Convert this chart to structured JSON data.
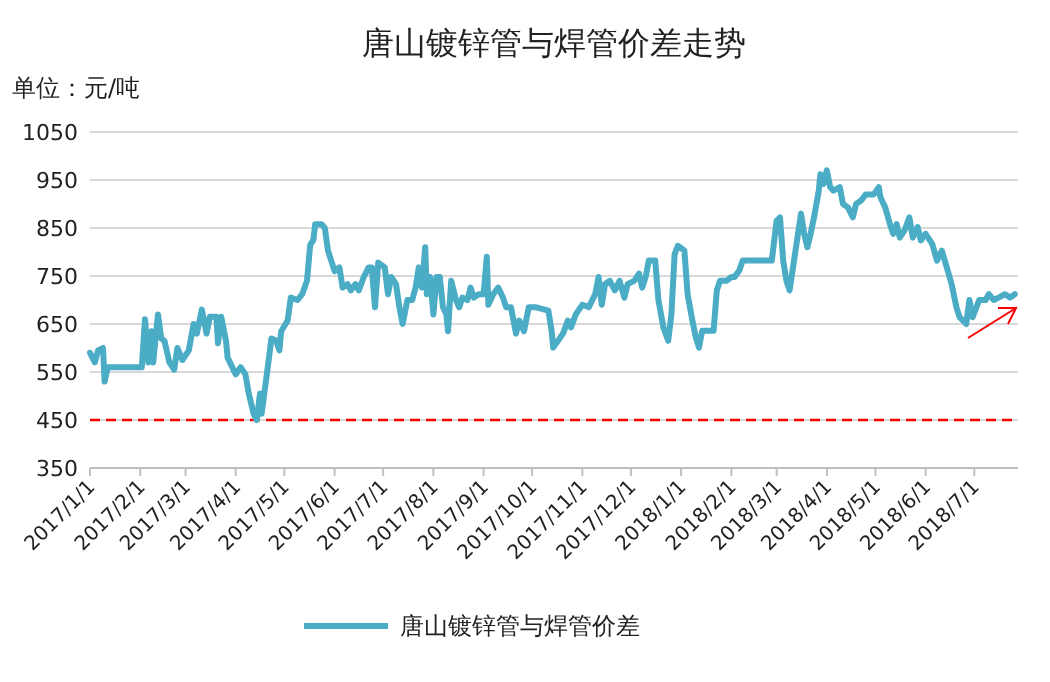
{
  "chart_data": {
    "type": "line",
    "title": "唐山镀锌管与焊管价差走势",
    "ylabel": "单位：元/吨",
    "ylim": [
      350,
      1050
    ],
    "yticks": [
      350,
      450,
      550,
      650,
      750,
      850,
      950,
      1050
    ],
    "xlim": [
      "2017-01-01",
      "2018-07-28"
    ],
    "xticks": [
      {
        "value": "2017-01-01",
        "label": "2017/1/1"
      },
      {
        "value": "2017-02-01",
        "label": "2017/2/1"
      },
      {
        "value": "2017-03-01",
        "label": "2017/3/1"
      },
      {
        "value": "2017-04-01",
        "label": "2017/4/1"
      },
      {
        "value": "2017-05-01",
        "label": "2017/5/1"
      },
      {
        "value": "2017-06-01",
        "label": "2017/6/1"
      },
      {
        "value": "2017-07-01",
        "label": "2017/7/1"
      },
      {
        "value": "2017-08-01",
        "label": "2017/8/1"
      },
      {
        "value": "2017-09-01",
        "label": "2017/9/1"
      },
      {
        "value": "2017-10-01",
        "label": "2017/10/1"
      },
      {
        "value": "2017-11-01",
        "label": "2017/11/1"
      },
      {
        "value": "2017-12-01",
        "label": "2017/12/1"
      },
      {
        "value": "2018-01-01",
        "label": "2018/1/1"
      },
      {
        "value": "2018-02-01",
        "label": "2018/2/1"
      },
      {
        "value": "2018-03-01",
        "label": "2018/3/1"
      },
      {
        "value": "2018-04-01",
        "label": "2018/4/1"
      },
      {
        "value": "2018-05-01",
        "label": "2018/5/1"
      },
      {
        "value": "2018-06-01",
        "label": "2018/6/1"
      },
      {
        "value": "2018-07-01",
        "label": "2018/7/1"
      }
    ],
    "grid": "y",
    "legend": "bottom",
    "marker": "none",
    "line_style": "solid",
    "ref_lines": [
      {
        "axis": "y",
        "value": 450,
        "color": "#ff0000",
        "line_style": "dashed"
      }
    ],
    "series": [
      {
        "name": "唐山镀锌管与焊管价差",
        "color": "#4bacc6",
        "x": [
          "2017-01-01",
          "2017-01-04",
          "2017-01-06",
          "2017-01-09",
          "2017-01-10",
          "2017-01-12",
          "2017-02-02",
          "2017-02-04",
          "2017-02-06",
          "2017-02-08",
          "2017-02-09",
          "2017-02-12",
          "2017-02-14",
          "2017-02-16",
          "2017-02-19",
          "2017-02-22",
          "2017-02-24",
          "2017-02-27",
          "2017-03-03",
          "2017-03-06",
          "2017-03-08",
          "2017-03-11",
          "2017-03-14",
          "2017-03-16",
          "2017-03-20",
          "2017-03-21",
          "2017-03-23",
          "2017-03-26",
          "2017-03-27",
          "2017-04-01",
          "2017-04-04",
          "2017-04-07",
          "2017-04-09",
          "2017-04-12",
          "2017-04-14",
          "2017-04-16",
          "2017-04-17",
          "2017-04-21",
          "2017-04-23",
          "2017-04-26",
          "2017-04-28",
          "2017-04-29",
          "2017-05-03",
          "2017-05-05",
          "2017-05-09",
          "2017-05-12",
          "2017-05-15",
          "2017-05-17",
          "2017-05-19",
          "2017-05-20",
          "2017-05-24",
          "2017-05-26",
          "2017-05-28",
          "2017-06-01",
          "2017-06-04",
          "2017-06-06",
          "2017-06-09",
          "2017-06-11",
          "2017-06-14",
          "2017-06-16",
          "2017-06-19",
          "2017-06-22",
          "2017-06-24",
          "2017-06-26",
          "2017-06-28",
          "2017-07-02",
          "2017-07-04",
          "2017-07-06",
          "2017-07-09",
          "2017-07-11",
          "2017-07-13",
          "2017-07-16",
          "2017-07-19",
          "2017-07-21",
          "2017-07-23",
          "2017-07-25",
          "2017-07-27",
          "2017-07-28",
          "2017-07-30",
          "2017-08-01",
          "2017-08-03",
          "2017-08-05",
          "2017-08-07",
          "2017-08-09",
          "2017-08-10",
          "2017-08-12",
          "2017-08-15",
          "2017-08-17",
          "2017-08-19",
          "2017-08-22",
          "2017-08-24",
          "2017-08-26",
          "2017-08-29",
          "2017-09-01",
          "2017-09-03",
          "2017-09-04",
          "2017-09-07",
          "2017-09-10",
          "2017-09-13",
          "2017-09-15",
          "2017-09-18",
          "2017-09-21",
          "2017-09-23",
          "2017-09-26",
          "2017-09-29",
          "2017-10-03",
          "2017-10-11",
          "2017-10-13",
          "2017-10-14",
          "2017-10-17",
          "2017-10-20",
          "2017-10-23",
          "2017-10-25",
          "2017-10-28",
          "2017-11-01",
          "2017-11-05",
          "2017-11-09",
          "2017-11-11",
          "2017-11-13",
          "2017-11-15",
          "2017-11-18",
          "2017-11-21",
          "2017-11-24",
          "2017-11-27",
          "2017-11-29",
          "2017-12-03",
          "2017-12-06",
          "2017-12-08",
          "2017-12-10",
          "2017-12-12",
          "2017-12-16",
          "2017-12-18",
          "2017-12-21",
          "2017-12-24",
          "2017-12-26",
          "2017-12-28",
          "2017-12-30",
          "2018-01-03",
          "2018-01-05",
          "2018-01-08",
          "2018-01-10",
          "2018-01-12",
          "2018-01-14",
          "2018-01-17",
          "2018-01-21",
          "2018-01-23",
          "2018-01-25",
          "2018-01-29",
          "2018-02-01",
          "2018-02-03",
          "2018-02-06",
          "2018-02-08",
          "2018-02-12",
          "2018-02-26",
          "2018-03-01",
          "2018-03-03",
          "2018-03-05",
          "2018-03-07",
          "2018-03-09",
          "2018-03-12",
          "2018-03-16",
          "2018-03-18",
          "2018-03-20",
          "2018-03-22",
          "2018-03-24",
          "2018-03-27",
          "2018-03-28",
          "2018-03-30",
          "2018-04-01",
          "2018-04-03",
          "2018-04-05",
          "2018-04-09",
          "2018-04-11",
          "2018-04-14",
          "2018-04-17",
          "2018-04-19",
          "2018-04-22",
          "2018-04-25",
          "2018-04-30",
          "2018-05-03",
          "2018-05-04",
          "2018-05-07",
          "2018-05-10",
          "2018-05-12",
          "2018-05-14",
          "2018-05-16",
          "2018-05-19",
          "2018-05-22",
          "2018-05-24",
          "2018-05-27",
          "2018-05-29",
          "2018-06-01",
          "2018-06-05",
          "2018-06-08",
          "2018-06-11",
          "2018-06-14",
          "2018-06-17",
          "2018-06-20",
          "2018-06-22",
          "2018-06-26",
          "2018-06-28",
          "2018-06-30",
          "2018-07-04",
          "2018-07-08",
          "2018-07-10",
          "2018-07-13",
          "2018-07-16",
          "2018-07-20",
          "2018-07-23",
          "2018-07-26"
        ],
        "values": [
          590,
          570,
          595,
          600,
          530,
          560,
          560,
          660,
          570,
          635,
          570,
          670,
          620,
          615,
          570,
          555,
          600,
          575,
          595,
          650,
          630,
          680,
          630,
          665,
          665,
          610,
          665,
          615,
          580,
          545,
          560,
          545,
          505,
          463,
          450,
          505,
          463,
          567,
          620,
          615,
          595,
          635,
          657,
          705,
          700,
          712,
          740,
          815,
          825,
          858,
          858,
          850,
          803,
          760,
          768,
          726,
          733,
          720,
          733,
          720,
          748,
          768,
          768,
          685,
          778,
          768,
          712,
          748,
          733,
          685,
          650,
          700,
          700,
          726,
          768,
          726,
          810,
          712,
          748,
          670,
          748,
          748,
          685,
          670,
          635,
          740,
          700,
          685,
          705,
          700,
          726,
          705,
          712,
          712,
          790,
          690,
          712,
          726,
          705,
          685,
          685,
          630,
          657,
          635,
          685,
          685,
          678,
          636,
          601,
          615,
          630,
          657,
          643,
          670,
          690,
          685,
          712,
          748,
          690,
          733,
          740,
          720,
          740,
          705,
          733,
          740,
          755,
          726,
          748,
          782,
          782,
          700,
          643,
          615,
          670,
          795,
          813,
          803,
          712,
          657,
          622,
          601,
          636,
          636,
          636,
          720,
          740,
          740,
          748,
          748,
          762,
          782,
          782,
          782,
          865,
          872,
          782,
          740,
          720,
          790,
          880,
          838,
          810,
          838,
          872,
          928,
          962,
          942,
          970,
          935,
          928,
          935,
          900,
          893,
          872,
          900,
          907,
          920,
          920,
          935,
          914,
          893,
          858,
          838,
          858,
          830,
          845,
          872,
          830,
          852,
          824,
          838,
          817,
          782,
          803,
          768,
          733,
          685,
          664,
          650,
          700,
          664,
          700,
          700,
          712,
          700,
          705,
          712,
          705,
          712
        ]
      }
    ]
  }
}
